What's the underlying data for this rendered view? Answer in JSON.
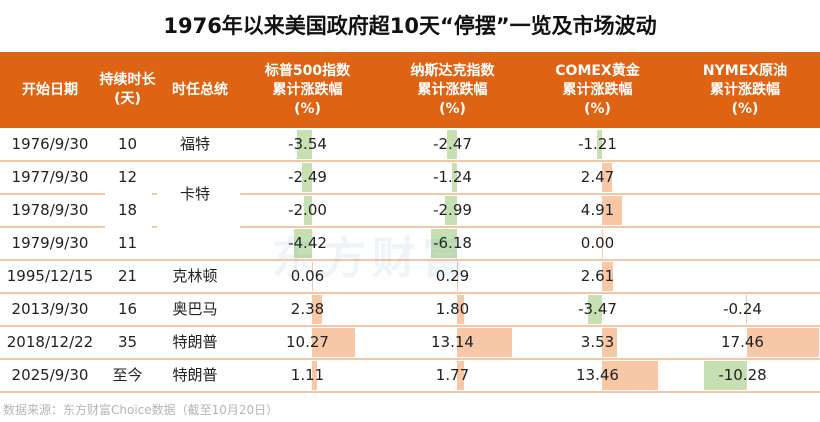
{
  "title": "1976年以来美国政府超10天“停摆”一览及市场波动",
  "headers": {
    "date": "开始日期",
    "days_1": "持续时长",
    "days_2": "(天)",
    "president": "时任总统",
    "sp_1": "标普500指数",
    "sp_2": "累计涨跌幅",
    "sp_3": "(%)",
    "nq_1": "纳斯达克指数",
    "nq_2": "累计涨跌幅",
    "nq_3": "(%)",
    "gold_1": "COMEX黄金",
    "gold_2": "累计涨跌幅",
    "gold_3": "(%)",
    "oil_1": "NYMEX原油",
    "oil_2": "累计涨跌幅",
    "oil_3": "(%)"
  },
  "colors": {
    "header": "#de6414",
    "positive": "#f7c7a6",
    "negative": "#c6e0b4",
    "separator": "#f5c6a4"
  },
  "chart_data": {
    "type": "table",
    "title": "1976年以来美国政府超10天“停摆”一览及市场波动",
    "rows": [
      {
        "date": "1976/9/30",
        "days": "10",
        "president": "福特",
        "sp": "-3.54",
        "nq": "-2.47",
        "gold": "-1.21",
        "oil": ""
      },
      {
        "date": "1977/9/30",
        "days": "12",
        "president": "",
        "sp": "-2.49",
        "nq": "-1.24",
        "gold": "2.47",
        "oil": ""
      },
      {
        "date": "1978/9/30",
        "days": "18",
        "president": "卡特",
        "sp": "-2.00",
        "nq": "-2.99",
        "gold": "4.91",
        "oil": ""
      },
      {
        "date": "1979/9/30",
        "days": "11",
        "president": "",
        "sp": "-4.42",
        "nq": "-6.18",
        "gold": "0.00",
        "oil": ""
      },
      {
        "date": "1995/12/15",
        "days": "21",
        "president": "克林顿",
        "sp": "0.06",
        "nq": "0.29",
        "gold": "2.61",
        "oil": ""
      },
      {
        "date": "2013/9/30",
        "days": "16",
        "president": "奥巴马",
        "sp": "2.38",
        "nq": "1.80",
        "gold": "-3.47",
        "oil": "-0.24"
      },
      {
        "date": "2018/12/22",
        "days": "35",
        "president": "特朗普",
        "sp": "10.27",
        "nq": "13.14",
        "gold": "3.53",
        "oil": "17.46"
      },
      {
        "date": "2025/9/30",
        "days": "至今",
        "president": "特朗普",
        "sp": "1.11",
        "nq": "1.77",
        "gold": "13.46",
        "oil": "-10.28"
      }
    ]
  },
  "watermark": "东方财富",
  "footer": "数据来源：东方财富Choice数据（截至10月20日）"
}
